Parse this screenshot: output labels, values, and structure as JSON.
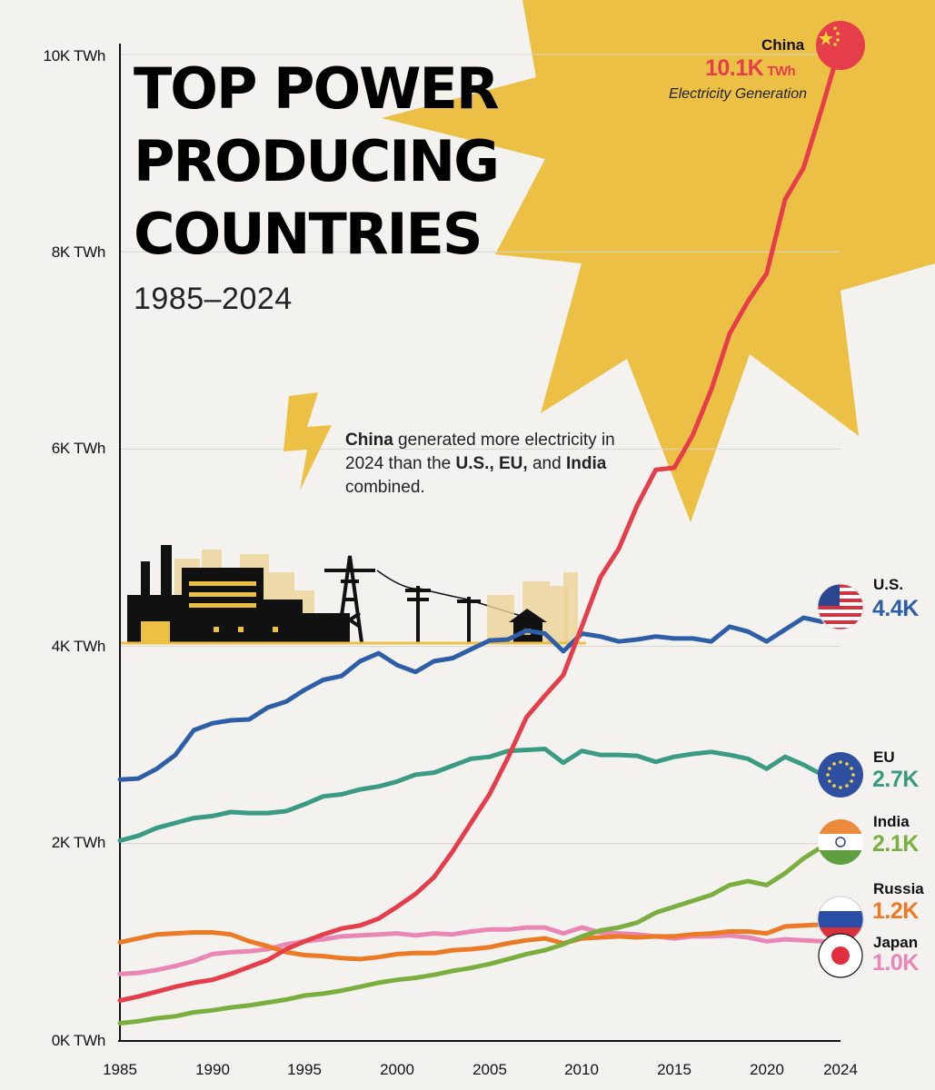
{
  "title_lines": [
    "TOP POWER",
    "PRODUCING",
    "COUNTRIES"
  ],
  "subtitle": "1985–2024",
  "callout": {
    "c1": "China",
    "t1": " generated more electricity in 2024 than the ",
    "c2": "U.S., EU,",
    "t2": " and ",
    "c3": "India",
    "t3": " combined."
  },
  "colors": {
    "background": "#f3f2ef",
    "sun": "#ecbf45",
    "china": "#e53e4a",
    "us": "#2f5ea8",
    "eu": "#3b9a82",
    "india": "#7aaf3f",
    "russia": "#ec7a24",
    "japan": "#e986b6"
  },
  "icons": [
    "sun-burst",
    "lightning-bolt-icon",
    "factory-skyline-icon",
    "transmission-tower-icon",
    "utility-pole-icon",
    "house-icon",
    "china-flag-icon",
    "us-flag-icon",
    "eu-flag-icon",
    "india-flag-icon",
    "russia-flag-icon",
    "japan-flag-icon"
  ],
  "chart_data": {
    "type": "line",
    "xlabel": "",
    "ylabel": "",
    "xlim": [
      1985,
      2024
    ],
    "ylim": [
      0,
      10000
    ],
    "y_ticks": [
      0,
      2000,
      4000,
      6000,
      8000,
      10000
    ],
    "y_tick_labels": [
      "0K TWh",
      "2K TWh",
      "4K TWh",
      "6K TWh",
      "8K TWh",
      "10K TWh"
    ],
    "x_ticks": [
      1985,
      1990,
      1995,
      2000,
      2005,
      2010,
      2015,
      2020,
      2024
    ],
    "x_tick_labels": [
      "1985",
      "1990",
      "1995",
      "2000",
      "2005",
      "2010",
      "2015",
      "2020",
      "2024"
    ],
    "grid": "horizontal",
    "x": [
      1985,
      1986,
      1987,
      1988,
      1989,
      1990,
      1991,
      1992,
      1993,
      1994,
      1995,
      1996,
      1997,
      1998,
      1999,
      2000,
      2001,
      2002,
      2003,
      2004,
      2005,
      2006,
      2007,
      2008,
      2009,
      2010,
      2011,
      2012,
      2013,
      2014,
      2015,
      2016,
      2017,
      2018,
      2019,
      2020,
      2021,
      2022,
      2023,
      2024
    ],
    "series": [
      {
        "name": "China",
        "color": "#e53e4a",
        "label_value": "10.1K",
        "label_unit": "TWh",
        "label_note": "Electricity Generation",
        "values": [
          410,
          450,
          500,
          550,
          590,
          620,
          680,
          750,
          820,
          930,
          1010,
          1080,
          1140,
          1170,
          1240,
          1360,
          1490,
          1660,
          1920,
          2210,
          2500,
          2870,
          3280,
          3500,
          3710,
          4200,
          4700,
          4990,
          5430,
          5790,
          5810,
          6140,
          6600,
          7170,
          7500,
          7780,
          8530,
          8850,
          9460,
          10100
        ]
      },
      {
        "name": "U.S.",
        "color": "#2f5ea8",
        "label_value": "4.4K",
        "values": [
          2650,
          2660,
          2760,
          2900,
          3150,
          3220,
          3250,
          3260,
          3380,
          3440,
          3560,
          3660,
          3700,
          3850,
          3930,
          3810,
          3740,
          3850,
          3880,
          3970,
          4060,
          4070,
          4160,
          4130,
          3950,
          4130,
          4100,
          4050,
          4070,
          4100,
          4080,
          4080,
          4050,
          4200,
          4150,
          4050,
          4170,
          4290,
          4250,
          4400
        ]
      },
      {
        "name": "EU",
        "color": "#3b9a82",
        "label_value": "2.7K",
        "values": [
          2030,
          2080,
          2160,
          2210,
          2260,
          2280,
          2320,
          2310,
          2310,
          2330,
          2400,
          2480,
          2500,
          2550,
          2580,
          2630,
          2700,
          2720,
          2790,
          2860,
          2880,
          2940,
          2950,
          2960,
          2820,
          2940,
          2900,
          2900,
          2890,
          2830,
          2880,
          2910,
          2930,
          2900,
          2860,
          2760,
          2880,
          2800,
          2700,
          2700
        ]
      },
      {
        "name": "India",
        "color": "#7aaf3f",
        "label_value": "2.1K",
        "values": [
          180,
          200,
          230,
          250,
          290,
          310,
          340,
          360,
          390,
          420,
          460,
          480,
          510,
          550,
          590,
          620,
          640,
          670,
          710,
          740,
          780,
          830,
          880,
          920,
          980,
          1060,
          1120,
          1150,
          1200,
          1300,
          1360,
          1420,
          1480,
          1580,
          1620,
          1580,
          1700,
          1850,
          1970,
          2100
        ]
      },
      {
        "name": "Russia",
        "color": "#ec7a24",
        "label_value": "1.2K",
        "values": [
          1000,
          1040,
          1080,
          1090,
          1100,
          1100,
          1080,
          1010,
          960,
          900,
          870,
          860,
          840,
          830,
          850,
          880,
          890,
          890,
          920,
          930,
          950,
          990,
          1020,
          1040,
          990,
          1040,
          1050,
          1060,
          1050,
          1060,
          1060,
          1080,
          1090,
          1110,
          1110,
          1090,
          1160,
          1170,
          1180,
          1200
        ]
      },
      {
        "name": "Japan",
        "color": "#e986b6",
        "label_value": "1.0K",
        "values": [
          680,
          690,
          720,
          760,
          810,
          880,
          900,
          910,
          930,
          980,
          1010,
          1030,
          1060,
          1070,
          1080,
          1090,
          1070,
          1090,
          1080,
          1110,
          1130,
          1130,
          1150,
          1150,
          1090,
          1150,
          1100,
          1090,
          1080,
          1060,
          1040,
          1060,
          1060,
          1070,
          1050,
          1010,
          1030,
          1020,
          1010,
          1000
        ]
      }
    ]
  }
}
